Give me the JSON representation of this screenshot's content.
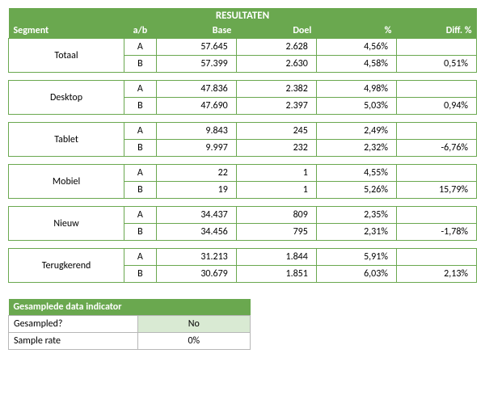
{
  "colors": {
    "header_bg": "#6aa84f",
    "border": "#6aa84f",
    "light_green": "#d9ead3",
    "white": "#ffffff",
    "gray_border": "#b7b7b7"
  },
  "results": {
    "title": "RESULTATEN",
    "columns": {
      "segment": "Segment",
      "ab": "a/b",
      "base": "Base",
      "doel": "Doel",
      "pct": "%",
      "diff": "Diff. %"
    },
    "segments": [
      {
        "name": "Totaal",
        "a": {
          "base": "57.645",
          "doel": "2.628",
          "pct": "4,56%",
          "diff": ""
        },
        "b": {
          "base": "57.399",
          "doel": "2.630",
          "pct": "4,58%",
          "diff": "0,51%"
        }
      },
      {
        "name": "Desktop",
        "a": {
          "base": "47.836",
          "doel": "2.382",
          "pct": "4,98%",
          "diff": ""
        },
        "b": {
          "base": "47.690",
          "doel": "2.397",
          "pct": "5,03%",
          "diff": "0,94%"
        }
      },
      {
        "name": "Tablet",
        "a": {
          "base": "9.843",
          "doel": "245",
          "pct": "2,49%",
          "diff": ""
        },
        "b": {
          "base": "9.997",
          "doel": "232",
          "pct": "2,32%",
          "diff": "-6,76%"
        }
      },
      {
        "name": "Mobiel",
        "a": {
          "base": "22",
          "doel": "1",
          "pct": "4,55%",
          "diff": ""
        },
        "b": {
          "base": "19",
          "doel": "1",
          "pct": "5,26%",
          "diff": "15,79%"
        }
      },
      {
        "name": "Nieuw",
        "a": {
          "base": "34.437",
          "doel": "809",
          "pct": "2,35%",
          "diff": ""
        },
        "b": {
          "base": "34.456",
          "doel": "795",
          "pct": "2,31%",
          "diff": "-1,78%"
        }
      },
      {
        "name": "Terugkerend",
        "a": {
          "base": "31.213",
          "doel": "1.844",
          "pct": "5,91%",
          "diff": ""
        },
        "b": {
          "base": "30.679",
          "doel": "1.851",
          "pct": "6,03%",
          "diff": "2,13%"
        }
      }
    ]
  },
  "indicator": {
    "title": "Gesamplede data indicator",
    "rows": [
      {
        "label": "Gesampled?",
        "value": "No",
        "highlight": true
      },
      {
        "label": "Sample rate",
        "value": "0%",
        "highlight": false
      }
    ]
  }
}
